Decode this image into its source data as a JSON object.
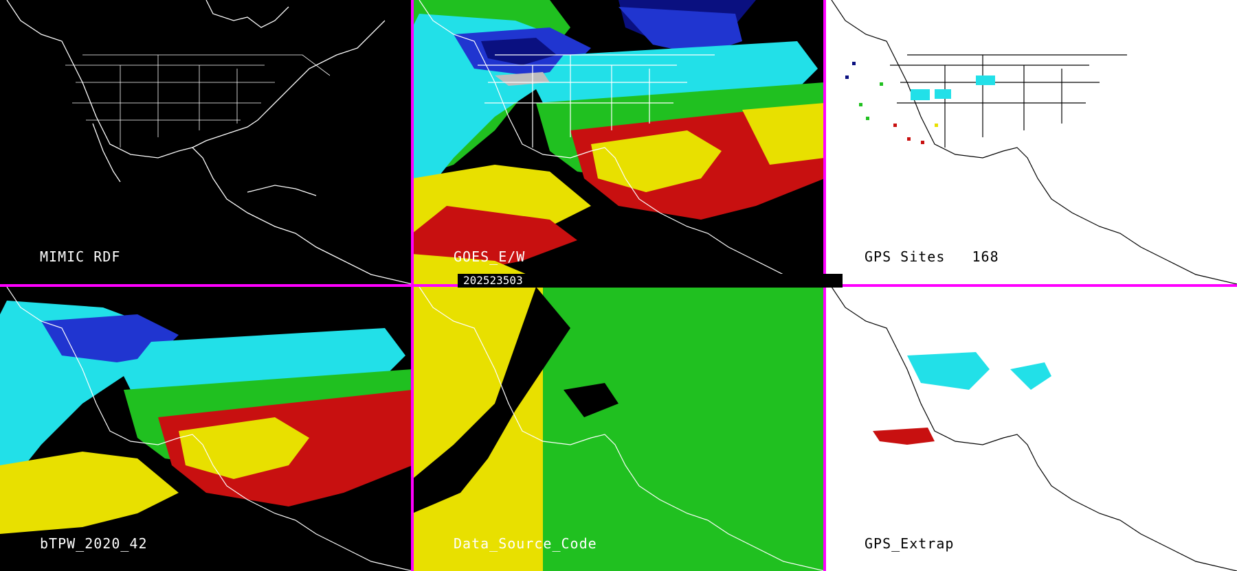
{
  "timestamp": "202523503",
  "panels": {
    "mimic_rdf": {
      "label": "MIMIC RDF"
    },
    "goes_ew": {
      "label": "GOES_E/W"
    },
    "gps_sites": {
      "label": "GPS Sites",
      "count": "168"
    },
    "btpw": {
      "label": "bTPW_2020_42"
    },
    "data_source_code": {
      "label": "Data_Source_Code"
    },
    "gps_extrap": {
      "label": "GPS_Extrap"
    }
  },
  "colors": {
    "separator": "#ff00ff",
    "navy": "#0a1080",
    "blue": "#2035d0",
    "cyan": "#22e0e8",
    "green": "#20c020",
    "yellow": "#e8e000",
    "red": "#c81010",
    "gray": "#bdbdbd",
    "map_line_dark": "#ffffff",
    "map_line_light": "#000000"
  }
}
